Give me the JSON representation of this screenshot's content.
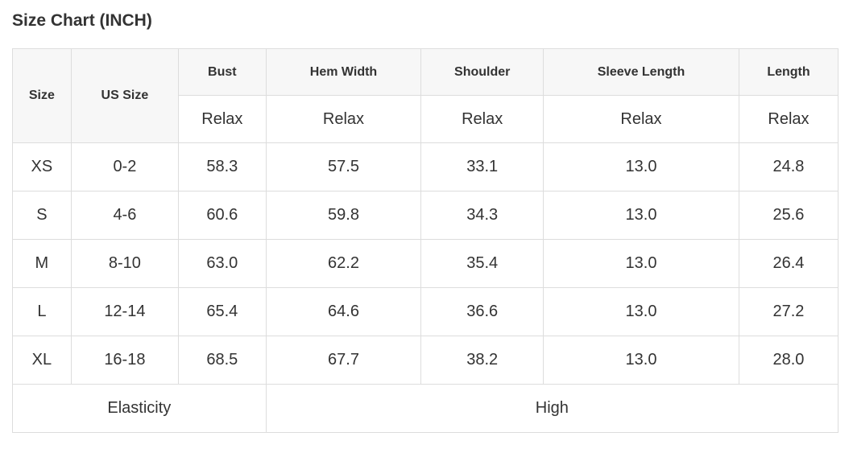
{
  "title": "Size Chart (INCH)",
  "table": {
    "header": {
      "size_label": "Size",
      "us_size_label": "US Size",
      "measure_columns": [
        {
          "label": "Bust",
          "fit": "Relax"
        },
        {
          "label": "Hem Width",
          "fit": "Relax"
        },
        {
          "label": "Shoulder",
          "fit": "Relax"
        },
        {
          "label": "Sleeve Length",
          "fit": "Relax"
        },
        {
          "label": "Length",
          "fit": "Relax"
        }
      ]
    },
    "rows": [
      {
        "size": "XS",
        "us_size": "0-2",
        "bust": "58.3",
        "hem_width": "57.5",
        "shoulder": "33.1",
        "sleeve_length": "13.0",
        "length": "24.8"
      },
      {
        "size": "S",
        "us_size": "4-6",
        "bust": "60.6",
        "hem_width": "59.8",
        "shoulder": "34.3",
        "sleeve_length": "13.0",
        "length": "25.6"
      },
      {
        "size": "M",
        "us_size": "8-10",
        "bust": "63.0",
        "hem_width": "62.2",
        "shoulder": "35.4",
        "sleeve_length": "13.0",
        "length": "26.4"
      },
      {
        "size": "L",
        "us_size": "12-14",
        "bust": "65.4",
        "hem_width": "64.6",
        "shoulder": "36.6",
        "sleeve_length": "13.0",
        "length": "27.2"
      },
      {
        "size": "XL",
        "us_size": "16-18",
        "bust": "68.5",
        "hem_width": "67.7",
        "shoulder": "38.2",
        "sleeve_length": "13.0",
        "length": "28.0"
      }
    ],
    "footer": {
      "elasticity_label": "Elasticity",
      "elasticity_value": "High"
    }
  },
  "colors": {
    "us_size_cell_bg": "#474747",
    "us_size_cell_text": "#ffffff",
    "header_row_bg": "#f7f7f7",
    "border": "#dddddd",
    "text": "#333333",
    "page_bg": "#ffffff"
  }
}
